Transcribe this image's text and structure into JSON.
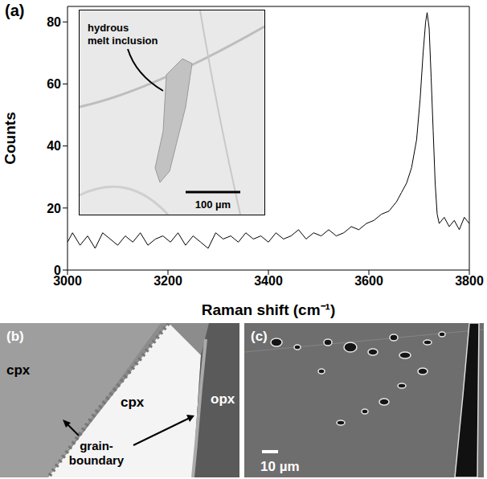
{
  "chart_data": {
    "type": "line",
    "x_label": "Raman shift (cm⁻¹)",
    "y_label": "Counts",
    "annotations": {
      "panel": "(a)",
      "inset_label": "hydrous melt inclusion",
      "scale_bar": "100 µm"
    },
    "x": [
      3000,
      3010,
      3025,
      3040,
      3055,
      3070,
      3085,
      3100,
      3115,
      3130,
      3145,
      3160,
      3175,
      3190,
      3205,
      3220,
      3235,
      3250,
      3265,
      3280,
      3295,
      3310,
      3325,
      3340,
      3355,
      3370,
      3385,
      3400,
      3415,
      3430,
      3445,
      3460,
      3475,
      3490,
      3505,
      3520,
      3535,
      3550,
      3565,
      3580,
      3595,
      3610,
      3625,
      3640,
      3655,
      3665,
      3675,
      3685,
      3695,
      3702,
      3708,
      3713,
      3716,
      3720,
      3724,
      3728,
      3732,
      3736,
      3740,
      3750,
      3760,
      3770,
      3780,
      3790,
      3800
    ],
    "values": [
      9,
      12,
      8,
      11,
      7,
      12,
      10,
      8,
      11,
      9,
      12,
      8,
      10,
      11,
      9,
      12,
      8,
      11,
      9,
      7,
      12,
      10,
      11,
      9,
      12,
      10,
      11,
      9,
      12,
      10,
      11,
      13,
      10,
      12,
      11,
      13,
      11,
      12,
      14,
      13,
      15,
      16,
      18,
      19,
      22,
      25,
      28,
      33,
      42,
      55,
      70,
      80,
      83,
      78,
      62,
      45,
      28,
      18,
      15,
      17,
      14,
      16,
      13,
      17,
      15
    ],
    "color": "#000000",
    "xlim": [
      3000,
      3800
    ],
    "xticks": [
      3000,
      3200,
      3400,
      3600,
      3800
    ],
    "ylim": [
      0,
      85
    ],
    "yticks": [
      0,
      20,
      40,
      60,
      80
    ],
    "grid": false
  },
  "panels": [
    {
      "label": "(b)",
      "texts": [
        "cpx",
        "cpx",
        "opx",
        "grain-boundary"
      ]
    },
    {
      "label": "(c)",
      "scale_bar": "10 µm"
    }
  ]
}
